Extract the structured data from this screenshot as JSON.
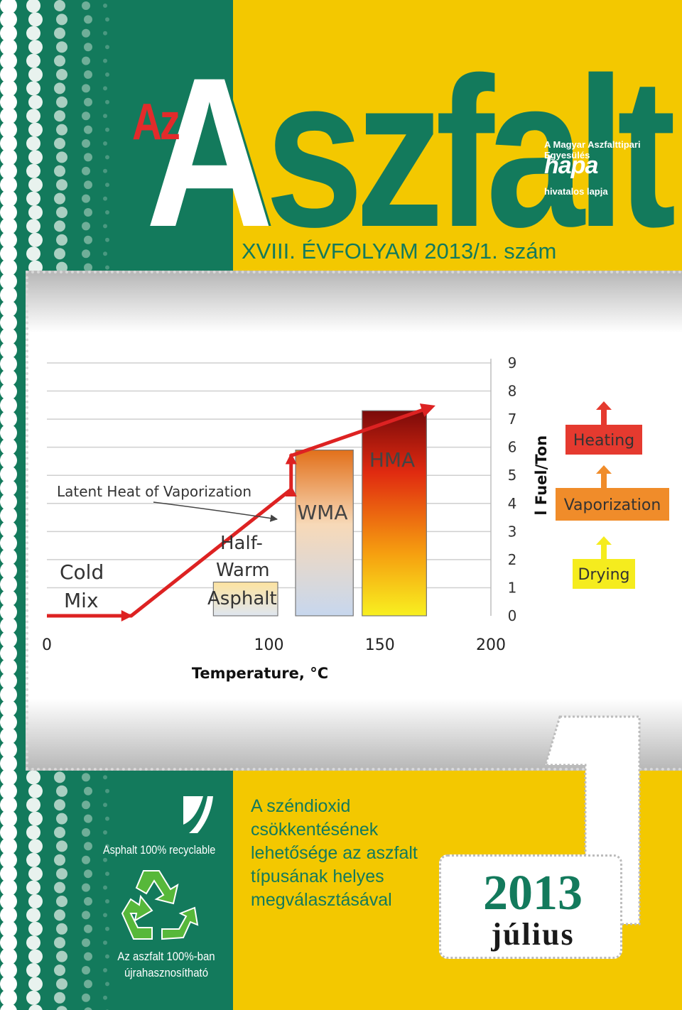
{
  "masthead": {
    "prefix": "Az",
    "title_first": "A",
    "title_rest": "szfalt",
    "association": "A Magyar Aszfalttipari Egyesülés",
    "logo": "hapa",
    "official": "hivatalos lapja",
    "issue": "XVIII. ÉVFOLYAM 2013/1. szám"
  },
  "chart_data": {
    "type": "area",
    "xlabel": "Temperature, °C",
    "ylabel": "l Fuel/Ton",
    "x_ticks": [
      "0",
      "100",
      "150",
      "200"
    ],
    "y_ticks": [
      "0",
      "1",
      "2",
      "3",
      "4",
      "5",
      "6",
      "7",
      "8",
      "9"
    ],
    "xlim": [
      0,
      200
    ],
    "ylim": [
      0,
      9
    ],
    "categories": [
      "Cold Mix",
      "Half-Warm Asphalt",
      "WMA",
      "HMA"
    ],
    "labels": {
      "cold": [
        "Cold",
        "Mix"
      ],
      "half": [
        "Half-",
        "Warm",
        "Asphalt"
      ],
      "wma": "WMA",
      "hma": "HMA",
      "latent": "Latent Heat of Vaporization"
    },
    "fuel_curve": [
      {
        "x": 0,
        "y": 0
      },
      {
        "x": 38,
        "y": 0
      },
      {
        "x": 110,
        "y": 4.5
      },
      {
        "x": 110,
        "y": 5.7
      },
      {
        "x": 172,
        "y": 7.4
      }
    ],
    "legend": [
      "Heating",
      "Vaporization",
      "Drying"
    ],
    "colors": {
      "curve": "#dd2222",
      "heating": "#e53a2f",
      "vaporization": "#f08c2a",
      "drying": "#f5ec1e"
    }
  },
  "recycle": {
    "caption": "Asphalt 100% recyclable",
    "caption_hu_1": "Az aszfalt 100%-ban",
    "caption_hu_2": "újrahasznosítható"
  },
  "headline": {
    "line1": "A széndioxid",
    "line2": "csökkentésének",
    "line3": "lehetősége az aszfalt",
    "line4": "típusának helyes",
    "line5": "megválasztásával"
  },
  "issue_badge": {
    "number": "1",
    "year": "2013",
    "month": "július"
  }
}
